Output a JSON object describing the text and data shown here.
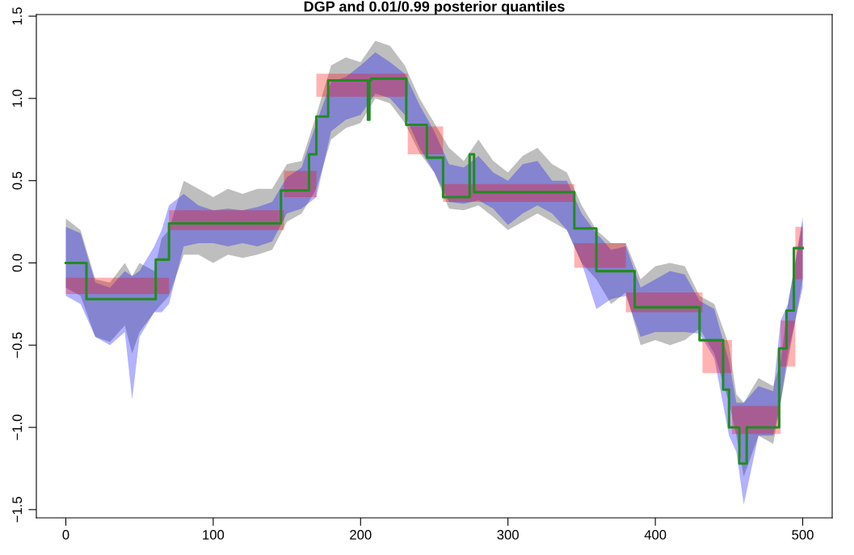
{
  "chart_data": {
    "type": "step",
    "title": "DGP and 0.01/0.99 posterior quantiles",
    "xlim": [
      -20,
      520
    ],
    "ylim": [
      -1.55,
      1.51
    ],
    "xticks": [
      0,
      100,
      200,
      300,
      400,
      500
    ],
    "yticks": [
      {
        "value": -1.5,
        "label": "−1.5"
      },
      {
        "value": -1.0,
        "label": "−1.0"
      },
      {
        "value": -0.5,
        "label": "−0.5"
      },
      {
        "value": 0.0,
        "label": "0.0"
      },
      {
        "value": 0.5,
        "label": "0.5"
      },
      {
        "value": 1.0,
        "label": "1.0"
      },
      {
        "value": 1.5,
        "label": "1.5"
      }
    ],
    "grid": false,
    "series": [
      {
        "type": "line",
        "color": "#bebebe",
        "x": [
          0,
          10,
          20,
          30,
          40,
          45,
          50,
          60,
          65,
          70,
          80,
          90,
          100,
          110,
          120,
          130,
          140,
          150,
          160,
          170,
          180,
          190,
          200,
          210,
          220,
          230,
          240,
          250,
          260,
          270,
          280,
          290,
          300,
          310,
          320,
          330,
          340,
          350,
          360,
          370,
          380,
          390,
          400,
          410,
          420,
          430,
          440,
          450,
          455,
          460,
          470,
          480,
          485,
          490,
          500
        ],
        "values": [
          null,
          null,
          null,
          null,
          null,
          null,
          null,
          null,
          null,
          null,
          null,
          null,
          null,
          null,
          null,
          null,
          null,
          null,
          null,
          null,
          null,
          null,
          null,
          null,
          null,
          null,
          null,
          null,
          null,
          null,
          null,
          null,
          null,
          null,
          null,
          null,
          null,
          null,
          null,
          null,
          null,
          null,
          null,
          null,
          null,
          null,
          null,
          null,
          null,
          null,
          null,
          null,
          null,
          null,
          null
        ],
        "lower": [
          -0.15,
          -0.2,
          -0.45,
          -0.48,
          -0.38,
          -0.55,
          -0.42,
          -0.3,
          -0.25,
          -0.2,
          0.05,
          0.05,
          0.0,
          0.05,
          0.03,
          0.05,
          0.08,
          0.25,
          0.3,
          0.45,
          0.75,
          0.82,
          0.85,
          1.0,
          0.97,
          0.85,
          0.67,
          0.55,
          0.33,
          0.32,
          0.35,
          0.28,
          0.2,
          0.25,
          0.3,
          0.25,
          0.2,
          0.0,
          -0.1,
          -0.25,
          -0.18,
          -0.5,
          -0.47,
          -0.5,
          -0.47,
          -0.4,
          -0.55,
          -0.85,
          -1.05,
          -1.3,
          -1.05,
          -1.1,
          -0.85,
          -0.6,
          -0.1
        ],
        "upper": [
          0.27,
          0.2,
          -0.1,
          -0.12,
          0.0,
          -0.08,
          0.0,
          -0.05,
          0.15,
          0.2,
          0.5,
          0.45,
          0.4,
          0.45,
          0.42,
          0.45,
          0.45,
          0.6,
          0.62,
          0.9,
          1.2,
          1.25,
          1.22,
          1.35,
          1.32,
          1.2,
          1.0,
          0.85,
          0.7,
          0.62,
          0.75,
          0.62,
          0.55,
          0.65,
          0.7,
          0.6,
          0.55,
          0.35,
          0.2,
          0.12,
          0.12,
          -0.1,
          -0.02,
          0.0,
          -0.02,
          -0.2,
          -0.25,
          -0.5,
          -0.8,
          -0.85,
          -0.7,
          -0.75,
          -0.6,
          -0.25,
          0.25
        ]
      },
      {
        "type": "line",
        "color": "#0000ff",
        "x": [
          0,
          10,
          20,
          30,
          40,
          45,
          50,
          60,
          65,
          70,
          80,
          90,
          100,
          110,
          120,
          130,
          140,
          150,
          160,
          170,
          180,
          190,
          200,
          210,
          220,
          230,
          240,
          250,
          260,
          270,
          280,
          290,
          300,
          310,
          320,
          330,
          340,
          350,
          360,
          370,
          380,
          390,
          400,
          410,
          420,
          430,
          440,
          450,
          455,
          460,
          470,
          480,
          485,
          490,
          500
        ],
        "values": [
          null,
          null,
          null,
          null,
          null,
          null,
          null,
          null,
          null,
          null,
          null,
          null,
          null,
          null,
          null,
          null,
          null,
          null,
          null,
          null,
          null,
          null,
          null,
          null,
          null,
          null,
          null,
          null,
          null,
          null,
          null,
          null,
          null,
          null,
          null,
          null,
          null,
          null,
          null,
          null,
          null,
          null,
          null,
          null,
          null,
          null,
          null,
          null,
          null,
          null,
          null,
          null,
          null,
          null,
          null
        ],
        "lower": [
          -0.2,
          -0.25,
          -0.45,
          -0.5,
          -0.42,
          -0.83,
          -0.45,
          -0.3,
          -0.3,
          -0.25,
          0.1,
          0.12,
          0.12,
          0.1,
          0.12,
          0.1,
          0.13,
          0.3,
          0.33,
          0.4,
          0.8,
          0.87,
          0.9,
          1.03,
          1.0,
          0.9,
          0.7,
          0.55,
          0.37,
          0.36,
          0.38,
          0.33,
          0.23,
          0.3,
          0.35,
          0.3,
          0.2,
          0.0,
          -0.28,
          -0.22,
          -0.2,
          -0.45,
          -0.42,
          -0.42,
          -0.42,
          -0.43,
          -0.58,
          -1.05,
          -1.15,
          -1.47,
          -1.05,
          -1.05,
          -0.85,
          -0.55,
          -0.15
        ],
        "upper": [
          0.22,
          0.18,
          -0.12,
          -0.15,
          -0.05,
          -0.08,
          -0.05,
          0.1,
          0.2,
          0.35,
          0.42,
          0.35,
          0.32,
          0.33,
          0.32,
          0.34,
          0.37,
          0.52,
          0.58,
          0.85,
          1.1,
          1.13,
          1.2,
          1.28,
          1.22,
          1.15,
          0.96,
          0.8,
          0.6,
          0.58,
          0.65,
          0.55,
          0.5,
          0.6,
          0.62,
          0.5,
          0.5,
          0.3,
          0.18,
          0.08,
          0.1,
          -0.15,
          -0.1,
          -0.05,
          -0.07,
          -0.23,
          -0.28,
          -0.6,
          -0.85,
          -0.85,
          -0.75,
          -0.78,
          -0.35,
          -0.25,
          0.28
        ]
      },
      {
        "type": "step",
        "color": "#ff0000",
        "x": [
          0,
          70,
          148,
          170,
          232,
          256,
          345,
          380,
          432,
          452,
          485,
          495,
          500
        ],
        "values": [
          null,
          null,
          null,
          null,
          null,
          null,
          null,
          null,
          null,
          null,
          null,
          null,
          null
        ],
        "lower": [
          -0.19,
          0.2,
          0.4,
          1.01,
          0.66,
          0.37,
          -0.03,
          -0.3,
          -0.67,
          -1.04,
          -0.63,
          -0.1,
          -0.1
        ],
        "upper": [
          -0.09,
          0.32,
          0.56,
          1.15,
          0.83,
          0.48,
          0.12,
          -0.18,
          -0.47,
          -0.87,
          -0.35,
          0.22,
          0.22
        ]
      },
      {
        "color": "#228b22",
        "x": [
          0,
          14,
          61,
          70,
          146,
          165,
          170,
          178,
          205,
          206,
          207,
          231,
          245,
          256,
          274,
          277,
          345,
          360,
          386,
          430,
          446,
          450,
          457,
          462,
          484,
          489,
          494,
          500
        ],
        "values": [
          0.0,
          -0.22,
          0.02,
          0.24,
          0.44,
          0.66,
          0.89,
          1.11,
          0.87,
          1.11,
          1.12,
          0.84,
          0.64,
          0.4,
          0.66,
          0.43,
          0.21,
          -0.05,
          -0.27,
          -0.47,
          -0.77,
          -1.0,
          -1.22,
          -1.0,
          -0.52,
          -0.29,
          0.09,
          0.09
        ]
      }
    ]
  }
}
